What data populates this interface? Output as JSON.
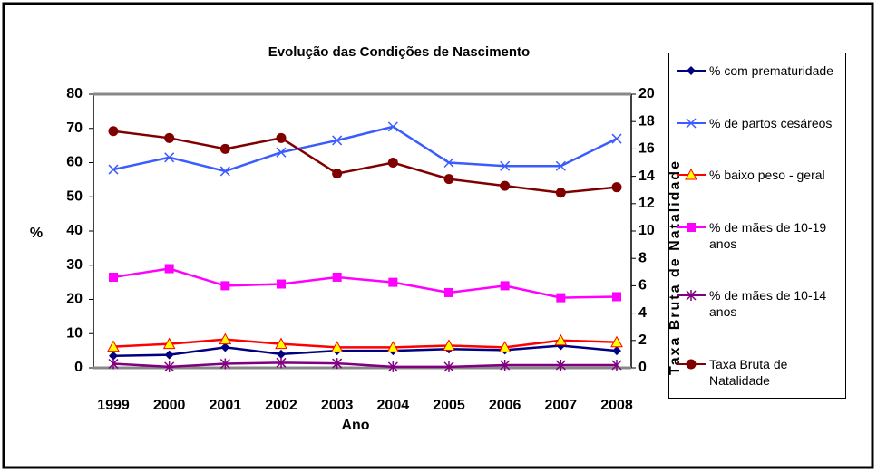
{
  "chart_data": {
    "type": "line",
    "title": "Evolução das Condições de Nascimento",
    "xlabel": "Ano",
    "ylabel": "%",
    "y2label": "Taxa Bruta de Natalidade",
    "categories": [
      "1999",
      "2000",
      "2001",
      "2002",
      "2003",
      "2004",
      "2005",
      "2006",
      "2007",
      "2008"
    ],
    "ylim": [
      0,
      80
    ],
    "yticks": [
      0,
      10,
      20,
      30,
      40,
      50,
      60,
      70,
      80
    ],
    "y2lim": [
      0,
      20
    ],
    "y2ticks": [
      0,
      2,
      4,
      6,
      8,
      10,
      12,
      14,
      16,
      18,
      20
    ],
    "legend": "right",
    "series": [
      {
        "name": "% com prematuridade",
        "color": "#000080",
        "marker": "diamond",
        "values": [
          3.5,
          3.8,
          6,
          4,
          5,
          5,
          5.5,
          5.2,
          6.5,
          5
        ]
      },
      {
        "name": "% de partos cesáreos",
        "color": "#3a5cff",
        "marker": "x",
        "values": [
          58,
          61.5,
          57.5,
          63,
          66.5,
          70.5,
          60,
          59,
          59,
          67
        ]
      },
      {
        "name": "% baixo peso - geral",
        "color": "#ff0000",
        "marker": "triangle",
        "values": [
          6.2,
          7,
          8.3,
          7,
          6,
          6,
          6.5,
          6,
          8,
          7.5
        ]
      },
      {
        "name": "% de mães de 10-19 anos",
        "color": "#ff00ff",
        "marker": "square",
        "values": [
          26.5,
          29,
          24,
          24.5,
          26.5,
          25,
          22,
          24,
          20.5,
          20.8
        ]
      },
      {
        "name": "% de mães de 10-14 anos",
        "color": "#800080",
        "marker": "asterisk",
        "values": [
          1.2,
          0.3,
          1.2,
          1.5,
          1.3,
          0.3,
          0.3,
          0.8,
          0.8,
          0.8
        ]
      },
      {
        "name": "Taxa Bruta de Natalidade",
        "color": "#800000",
        "marker": "circle",
        "axis": "y2",
        "values": [
          17.3,
          16.8,
          16,
          16.8,
          14.2,
          15,
          13.8,
          13.3,
          12.8,
          13.2
        ]
      }
    ]
  }
}
